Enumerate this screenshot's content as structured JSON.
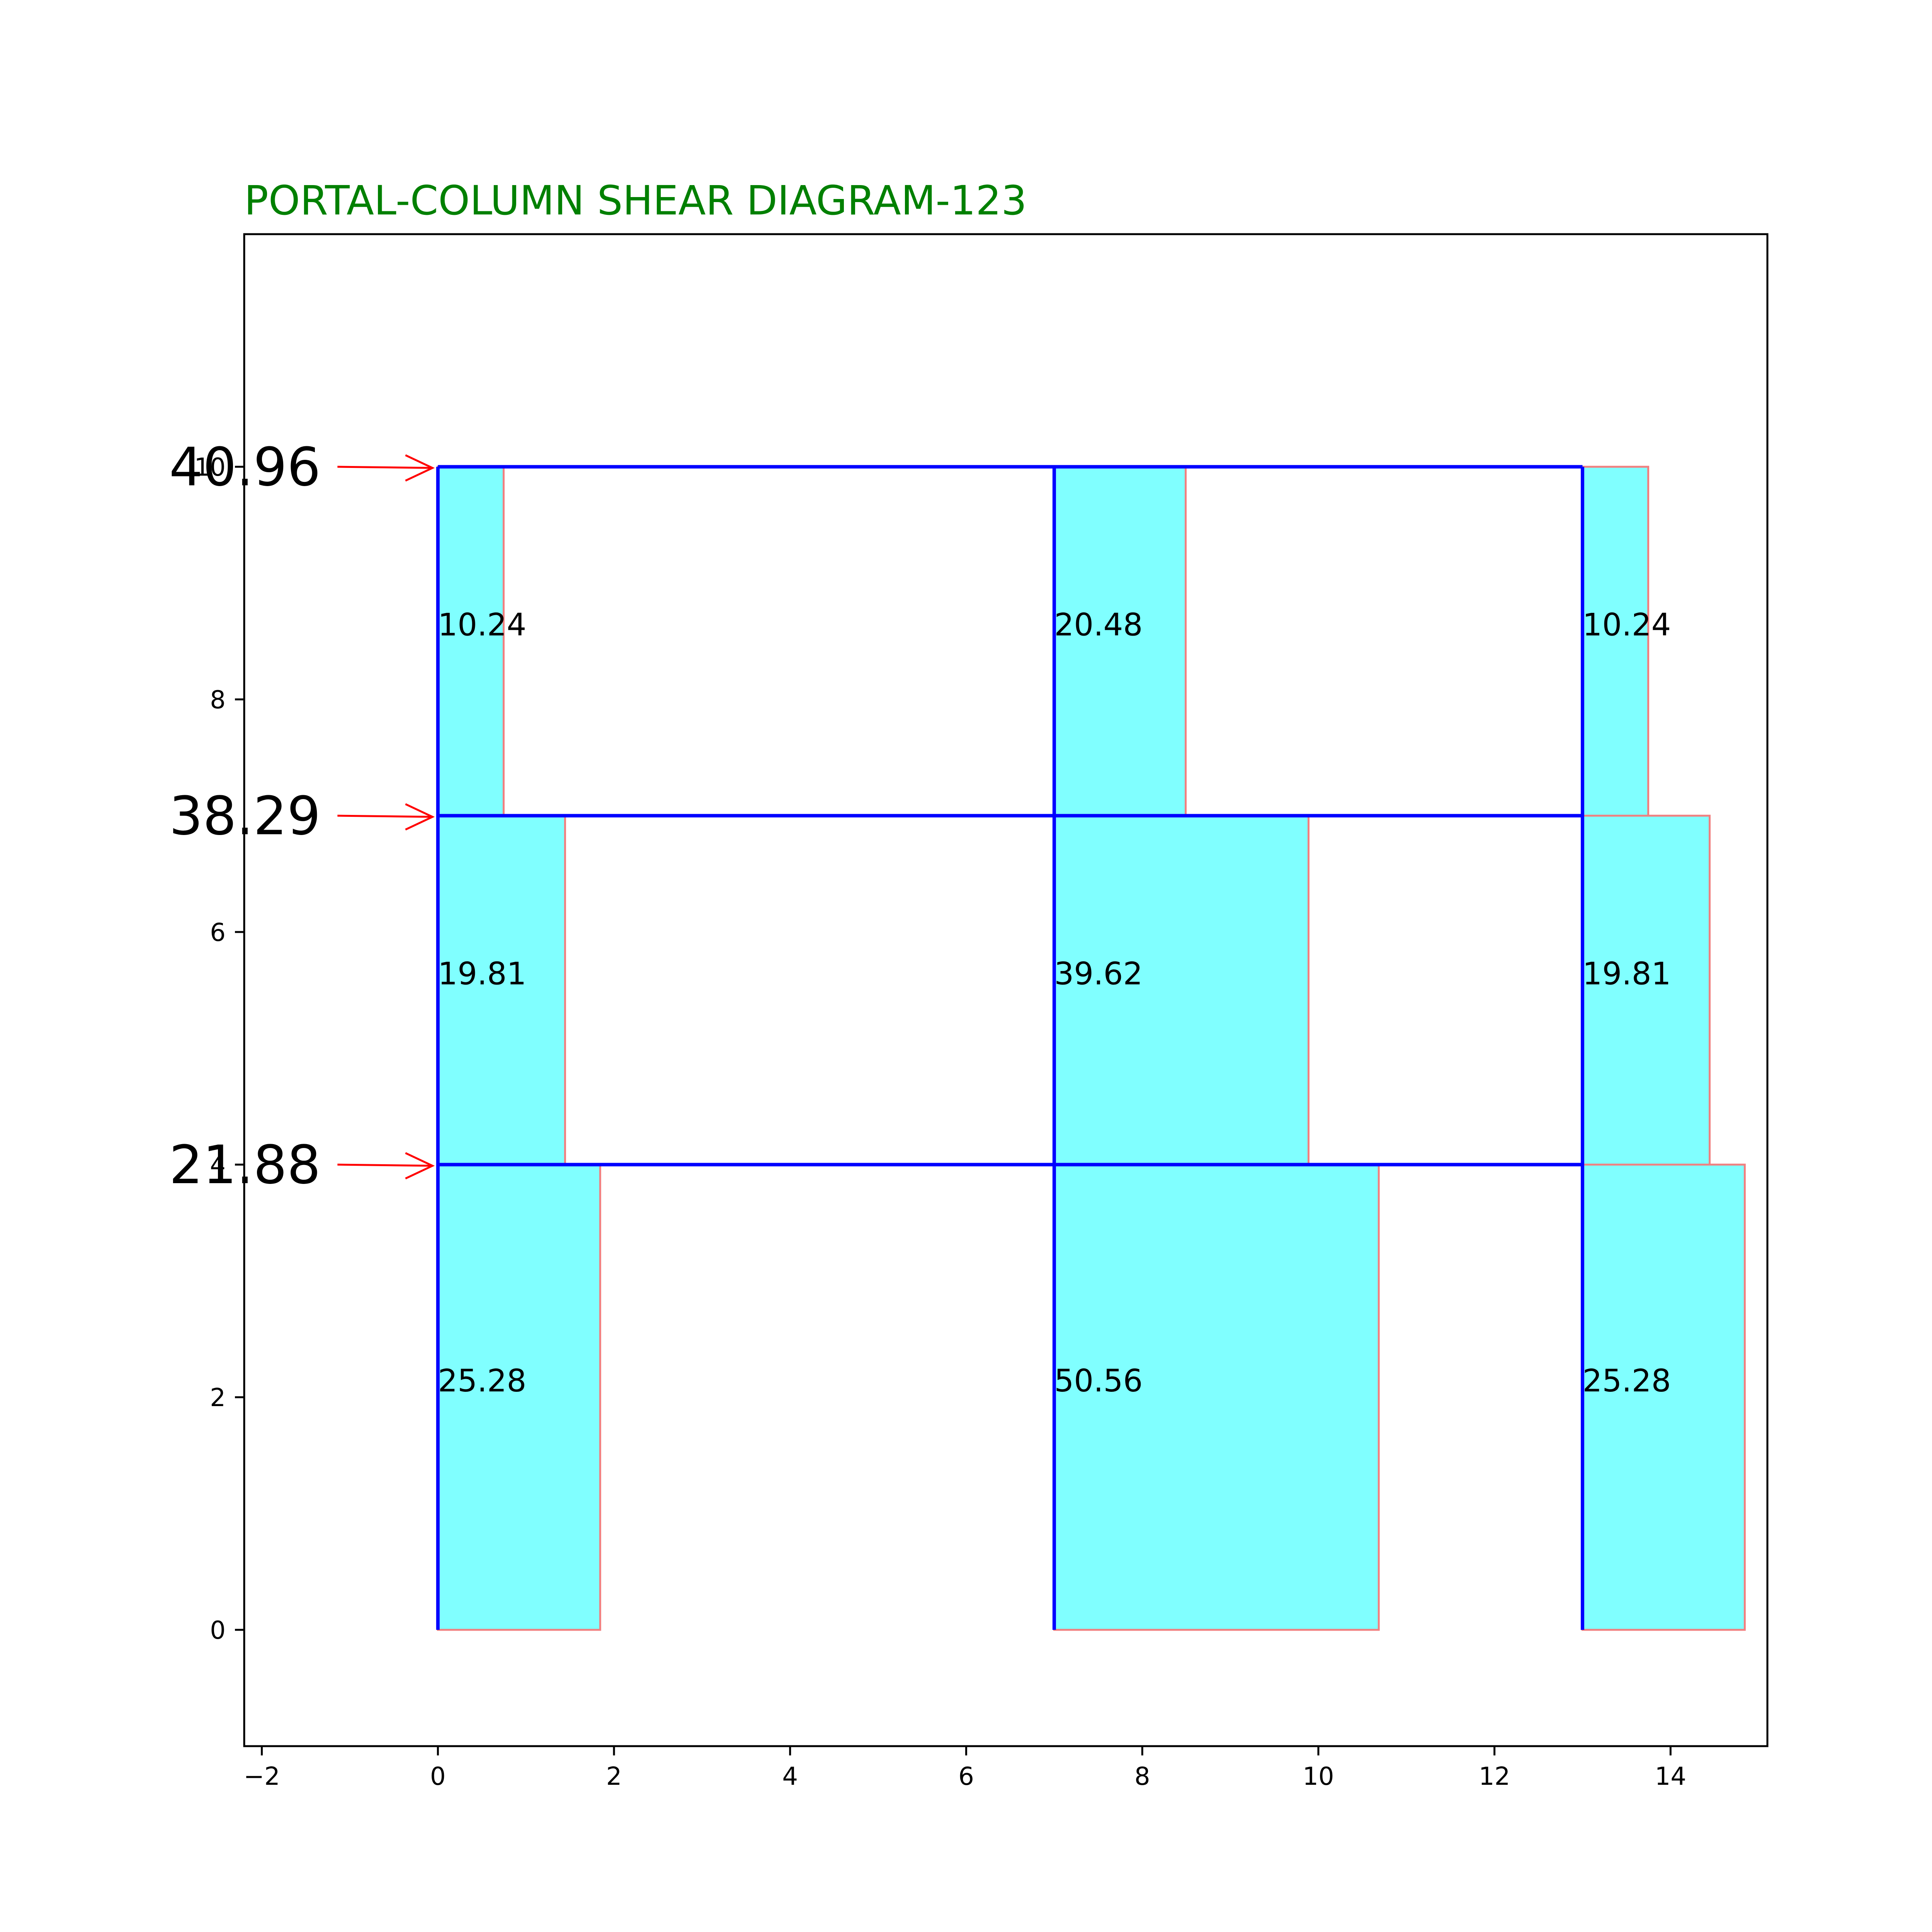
{
  "chart_data": {
    "type": "bar",
    "title": "PORTAL-COLUMN SHEAR DIAGRAM-123",
    "title_color": "#008000",
    "xlim": [
      -2.2,
      15.1
    ],
    "ylim": [
      -1,
      12
    ],
    "x_ticks": [
      -2,
      0,
      2,
      4,
      6,
      8,
      10,
      12,
      14
    ],
    "x_tick_labels": [
      "−2",
      "0",
      "2",
      "4",
      "6",
      "8",
      "10",
      "12",
      "14"
    ],
    "y_ticks": [
      0,
      2,
      4,
      6,
      8,
      10
    ],
    "y_tick_labels": [
      "0",
      "2",
      "4",
      "6",
      "8",
      "10"
    ],
    "grid": false,
    "colors": {
      "fill": "#80ffff",
      "bar_edge": "#f08080",
      "frame": "#0000ff",
      "arrow": "#ff0000",
      "text": "#000000"
    },
    "columns_x": [
      0,
      7,
      13
    ],
    "floor_levels_y": [
      0,
      4,
      7,
      10
    ],
    "column_shears": [
      {
        "column_x": 0,
        "y_bottom": 0,
        "y_top": 4,
        "value": 25.28,
        "label": "25.28"
      },
      {
        "column_x": 7,
        "y_bottom": 0,
        "y_top": 4,
        "value": 50.56,
        "label": "50.56"
      },
      {
        "column_x": 13,
        "y_bottom": 0,
        "y_top": 4,
        "value": 25.28,
        "label": "25.28"
      },
      {
        "column_x": 0,
        "y_bottom": 4,
        "y_top": 7,
        "value": 19.81,
        "label": "19.81"
      },
      {
        "column_x": 7,
        "y_bottom": 4,
        "y_top": 7,
        "value": 39.62,
        "label": "39.62"
      },
      {
        "column_x": 13,
        "y_bottom": 4,
        "y_top": 7,
        "value": 19.81,
        "label": "19.81"
      },
      {
        "column_x": 0,
        "y_bottom": 7,
        "y_top": 10,
        "value": 10.24,
        "label": "10.24"
      },
      {
        "column_x": 7,
        "y_bottom": 7,
        "y_top": 10,
        "value": 20.48,
        "label": "20.48"
      },
      {
        "column_x": 13,
        "y_bottom": 7,
        "y_top": 10,
        "value": 10.24,
        "label": "10.24"
      }
    ],
    "lateral_loads": [
      {
        "y": 10,
        "value": 40.96,
        "label": "40.96"
      },
      {
        "y": 7,
        "value": 38.29,
        "label": "38.29"
      },
      {
        "y": 4,
        "value": 21.88,
        "label": "21.88"
      }
    ]
  }
}
